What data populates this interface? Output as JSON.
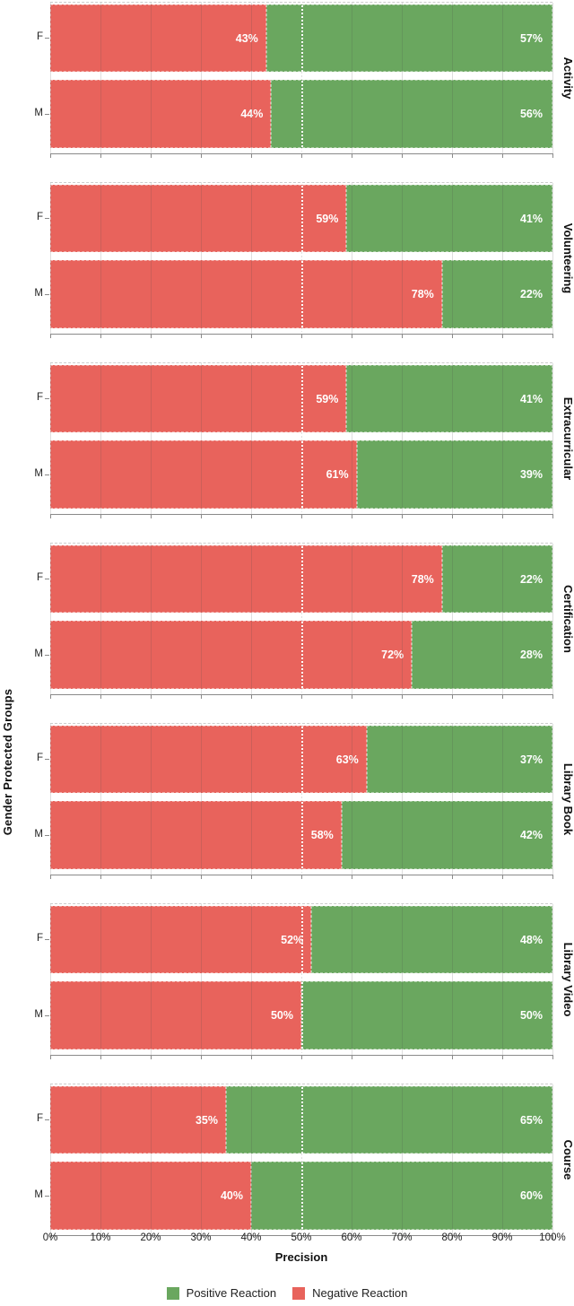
{
  "chart_data": {
    "type": "bar",
    "variant": "horizontal-stacked-faceted",
    "title": "",
    "xlabel": "Precision",
    "ylabel": "Gender Protected Groups",
    "x_range": [
      0,
      100
    ],
    "x_ticks": [
      "0%",
      "10%",
      "20%",
      "30%",
      "40%",
      "50%",
      "60%",
      "70%",
      "80%",
      "90%",
      "100%"
    ],
    "grid": true,
    "reference_line_percent": 50,
    "legend_position": "bottom",
    "legend": [
      {
        "label": "Positive Reaction",
        "color": "#6aa75f"
      },
      {
        "label": "Negative Reaction",
        "color": "#e8635c"
      }
    ],
    "group_axis": [
      "F",
      "M"
    ],
    "facets": [
      {
        "label": "Activity",
        "rows": [
          {
            "group": "F",
            "negative_pct": 43,
            "positive_pct": 57
          },
          {
            "group": "M",
            "negative_pct": 44,
            "positive_pct": 56
          }
        ]
      },
      {
        "label": "Volunteering",
        "rows": [
          {
            "group": "F",
            "negative_pct": 59,
            "positive_pct": 41
          },
          {
            "group": "M",
            "negative_pct": 78,
            "positive_pct": 22
          }
        ]
      },
      {
        "label": "Extracurricular",
        "rows": [
          {
            "group": "F",
            "negative_pct": 59,
            "positive_pct": 41
          },
          {
            "group": "M",
            "negative_pct": 61,
            "positive_pct": 39
          }
        ]
      },
      {
        "label": "Certification",
        "rows": [
          {
            "group": "F",
            "negative_pct": 78,
            "positive_pct": 22
          },
          {
            "group": "M",
            "negative_pct": 72,
            "positive_pct": 28
          }
        ]
      },
      {
        "label": "Library Book",
        "rows": [
          {
            "group": "F",
            "negative_pct": 63,
            "positive_pct": 37
          },
          {
            "group": "M",
            "negative_pct": 58,
            "positive_pct": 42
          }
        ]
      },
      {
        "label": "Library Video",
        "rows": [
          {
            "group": "F",
            "negative_pct": 52,
            "positive_pct": 48
          },
          {
            "group": "M",
            "negative_pct": 50,
            "positive_pct": 50
          }
        ]
      },
      {
        "label": "Course",
        "rows": [
          {
            "group": "F",
            "negative_pct": 35,
            "positive_pct": 65
          },
          {
            "group": "M",
            "negative_pct": 40,
            "positive_pct": 60
          }
        ]
      }
    ]
  }
}
